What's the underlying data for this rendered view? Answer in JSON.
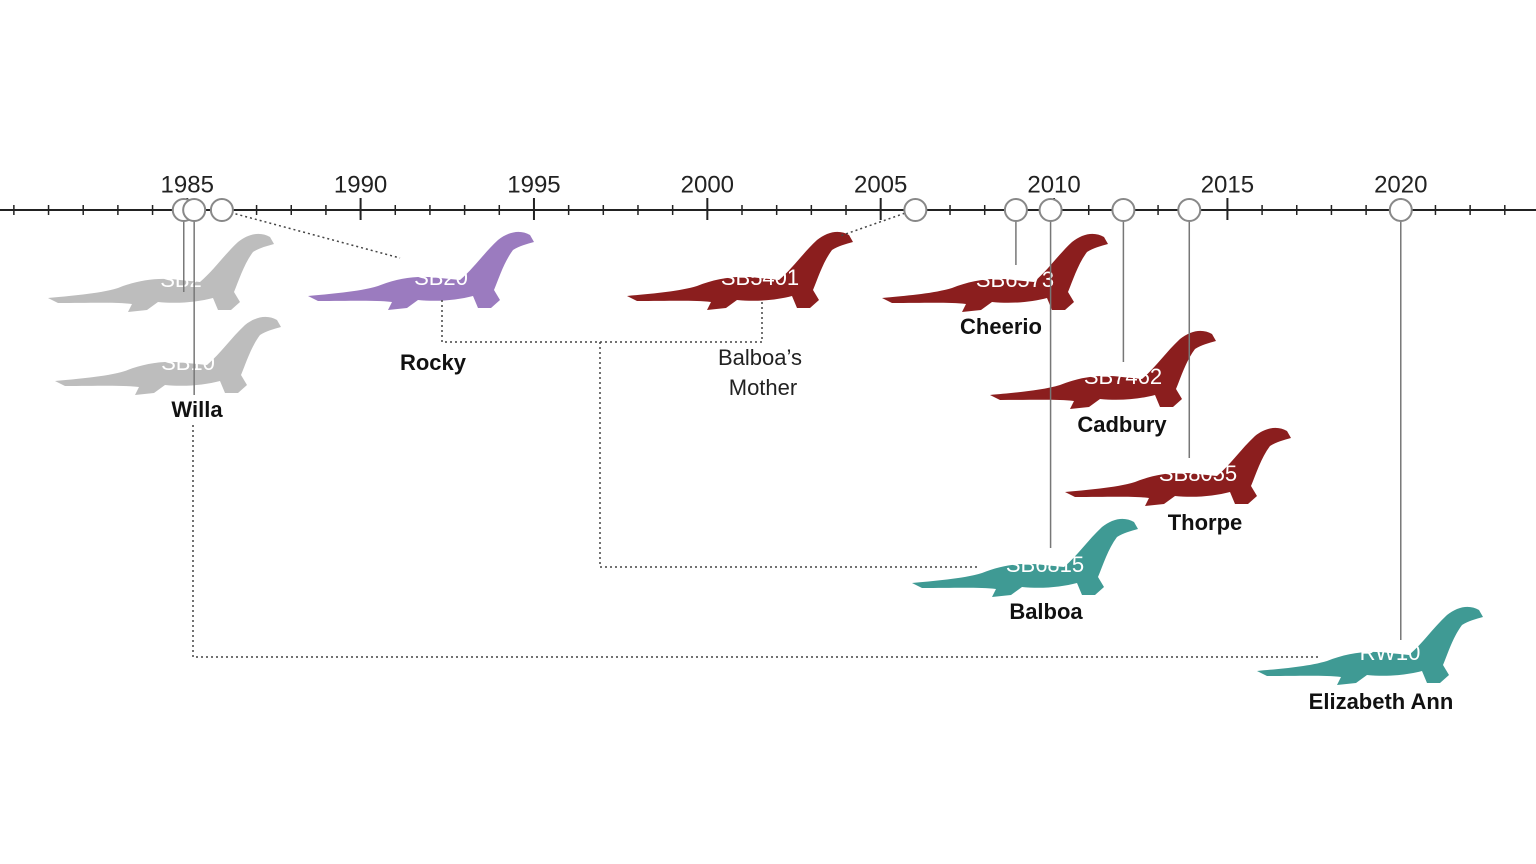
{
  "axis": {
    "xlim": [
      1979.6,
      2023.9
    ],
    "ticks": [
      1985,
      1990,
      1995,
      2000,
      2005,
      2010,
      2015,
      2020
    ]
  },
  "nodes": [
    {
      "id": "SB2",
      "year": 1984.9,
      "color": "#bdbdbd"
    },
    {
      "id": "SB10",
      "year": 1985.2,
      "color": "#bdbdbd",
      "name": "Willa"
    },
    {
      "id": "SB20",
      "year": 1986.0,
      "color": "#9b7bbf",
      "name": "Rocky"
    },
    {
      "id": "SB5401",
      "year": 2006.0,
      "color": "#8b1e1e",
      "note_lines": [
        "Balboa’s",
        "Mother"
      ]
    },
    {
      "id": "SB6573",
      "year": 2008.9,
      "color": "#8b1e1e",
      "name": "Cheerio"
    },
    {
      "id": "SB6815",
      "year": 2009.9,
      "color": "#3f9a94",
      "name": "Balboa"
    },
    {
      "id": "SB7462",
      "year": 2012.0,
      "color": "#8b1e1e",
      "name": "Cadbury"
    },
    {
      "id": "SB8055",
      "year": 2013.9,
      "color": "#8b1e1e",
      "name": "Thorpe"
    },
    {
      "id": "RW10",
      "year": 2020.0,
      "color": "#3f9a94",
      "name": "Elizabeth Ann"
    }
  ]
}
